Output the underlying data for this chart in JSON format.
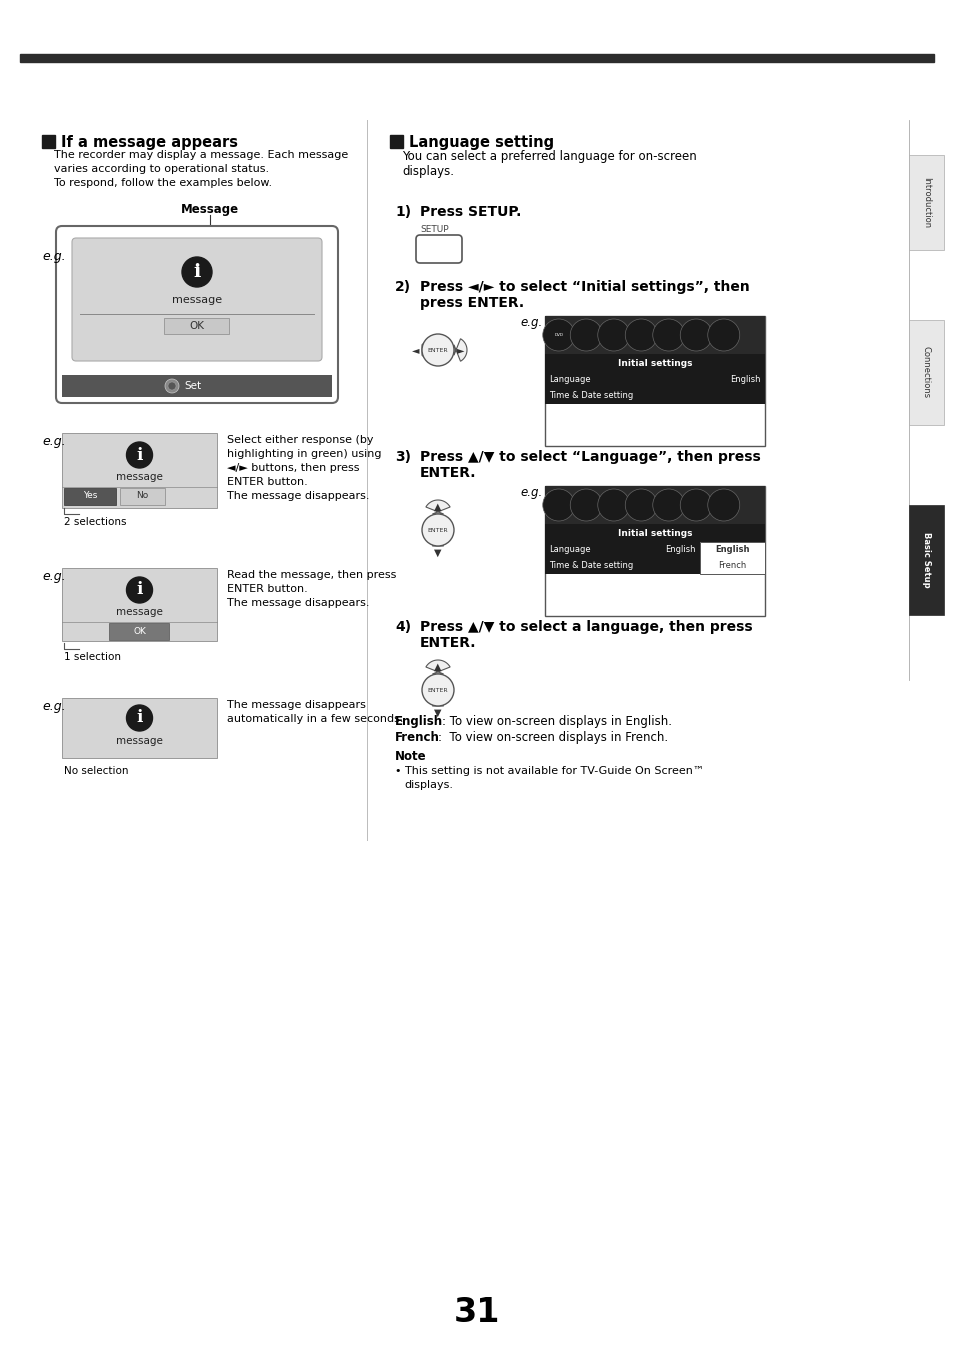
{
  "bg_color": "#ffffff",
  "top_bar_color": "#2d2d2d",
  "page_number": "31",
  "left_section_title": "If a message appears",
  "right_section_title": "Language setting",
  "body_text_left": [
    "The recorder may display a message. Each message",
    "varies according to operational status.",
    "To respond, follow the examples below."
  ],
  "body_text_right": [
    "You can select a preferred language for on-screen",
    "displays."
  ]
}
